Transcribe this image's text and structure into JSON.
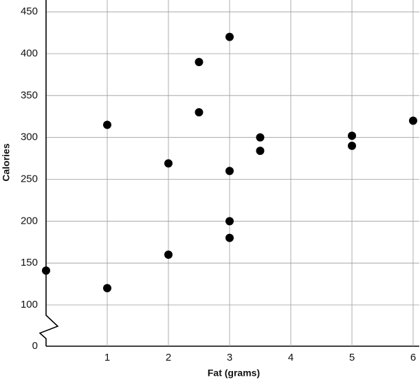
{
  "chart_data": {
    "type": "scatter",
    "x_label": "Fat (grams)",
    "y_label": "Calories",
    "x": [
      0,
      1,
      1,
      2,
      2,
      2.5,
      2.5,
      3,
      3,
      3,
      3,
      3.5,
      3.5,
      5,
      5,
      6
    ],
    "values": [
      141,
      315,
      120,
      269,
      160,
      390,
      330,
      420,
      260,
      200,
      180,
      300,
      284,
      302,
      290,
      320
    ],
    "color": "#000000",
    "xlim": [
      0,
      6.1
    ],
    "xticks": [
      1,
      2,
      3,
      4,
      5,
      6
    ],
    "ylim": [
      0,
      460
    ],
    "yticks": [
      0,
      100,
      150,
      200,
      250,
      300,
      350,
      400,
      450
    ],
    "y_axis_break": [
      0,
      100
    ],
    "grid": true
  }
}
